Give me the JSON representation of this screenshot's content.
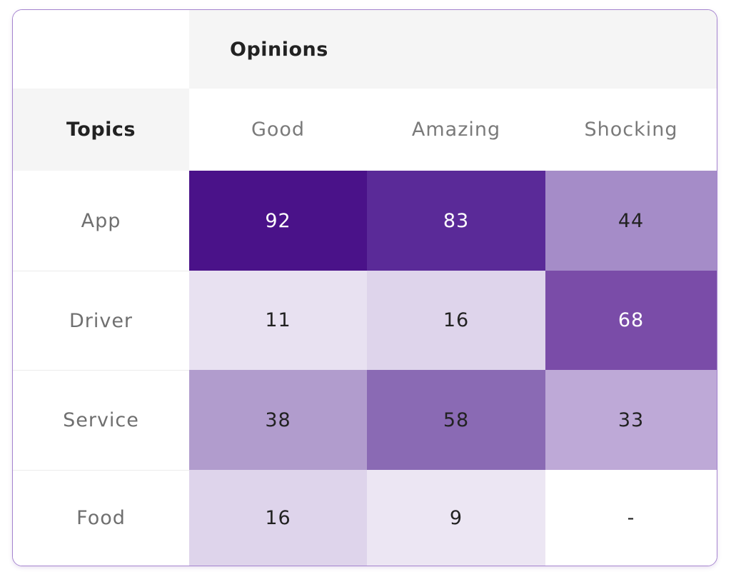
{
  "chart_data": {
    "type": "heatmap",
    "title": "",
    "column_group_label": "Opinions",
    "row_header_label": "Topics",
    "columns": [
      "Good",
      "Amazing",
      "Shocking"
    ],
    "rows": [
      "App",
      "Driver",
      "Service",
      "Food"
    ],
    "cells": [
      [
        {
          "display": "92",
          "value": 92,
          "color": "#4a1289",
          "text_dark": false
        },
        {
          "display": "83",
          "value": 83,
          "color": "#5a2a98",
          "text_dark": false
        },
        {
          "display": "44",
          "value": 44,
          "color": "#a58cc8",
          "text_dark": true
        }
      ],
      [
        {
          "display": "11",
          "value": 11,
          "color": "#e8e1f1",
          "text_dark": true
        },
        {
          "display": "16",
          "value": 16,
          "color": "#ded4eb",
          "text_dark": true
        },
        {
          "display": "68",
          "value": 68,
          "color": "#7a4ca8",
          "text_dark": false
        }
      ],
      [
        {
          "display": "38",
          "value": 38,
          "color": "#b19ccd",
          "text_dark": true
        },
        {
          "display": "58",
          "value": 58,
          "color": "#8a6ab4",
          "text_dark": true
        },
        {
          "display": "33",
          "value": 33,
          "color": "#bea9d7",
          "text_dark": true
        }
      ],
      [
        {
          "display": "16",
          "value": 16,
          "color": "#ded4eb",
          "text_dark": true
        },
        {
          "display": "9",
          "value": 9,
          "color": "#ece6f3",
          "text_dark": true
        },
        {
          "display": "-",
          "value": null,
          "color": "#ffffff",
          "text_dark": true
        }
      ]
    ]
  }
}
